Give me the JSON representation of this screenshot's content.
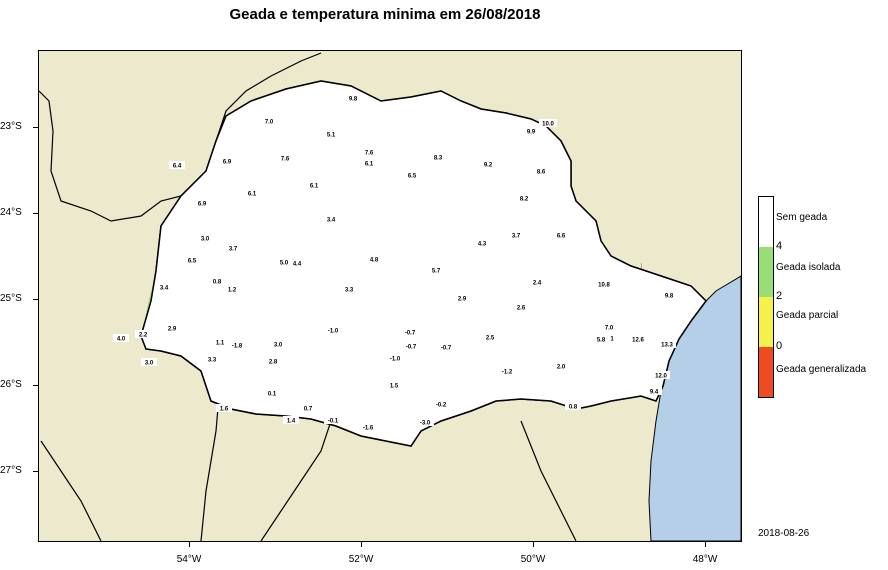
{
  "title": "Geada e temperatura minima em 26/08/2018",
  "date": "2018-08-26",
  "y_ticks": [
    "23°S",
    "24°S",
    "25°S",
    "26°S",
    "27°S"
  ],
  "x_ticks": [
    "54°W",
    "52°W",
    "50°W",
    "48°W"
  ],
  "legend": {
    "numbers": [
      "4",
      "2",
      "0"
    ],
    "classes": [
      {
        "label": "Sem geada",
        "color": "#ffffff"
      },
      {
        "label": "Geada isolada",
        "color": "#99dd77"
      },
      {
        "label": "Geada parcial",
        "color": "#f5f04a"
      },
      {
        "label": "Geada generalizada",
        "color": "#f04a22"
      }
    ]
  },
  "stations": [
    "9.8",
    "7.0",
    "5.1",
    "7.6",
    "10.0",
    "9.9",
    "7.6",
    "6.1",
    "8.3",
    "9.2",
    "6.4",
    "6.9",
    "8.6",
    "6.5",
    "6.1",
    "6.1",
    "8.2",
    "6.9",
    "3.4",
    "6.6",
    "3.0",
    "3.7",
    "4.3",
    "5.0",
    "4.4",
    "4.8",
    "3.7",
    "6.5",
    "5.7",
    "2.4",
    "0.8",
    "1.2",
    "3.4",
    "3.3",
    "10.8",
    "9.8",
    "2.9",
    "2.6",
    "2.2",
    "2.9",
    "4.0",
    "-1.0",
    "-0.7",
    "-0.7",
    "2.5",
    "7.0",
    "1.1",
    "-1.8",
    "3.0",
    "-1.0",
    "-0.7",
    "5.8",
    "1",
    "12.6",
    "13.3",
    "3.3",
    "2.8",
    "3.0",
    "-1.2",
    "2.0",
    "0.1",
    "1.5",
    "12.0",
    "1.6",
    "0.7",
    "-0.2",
    "9.4",
    "1.4",
    "-0.1",
    "-1.6",
    "-3.0",
    "0.8"
  ]
}
